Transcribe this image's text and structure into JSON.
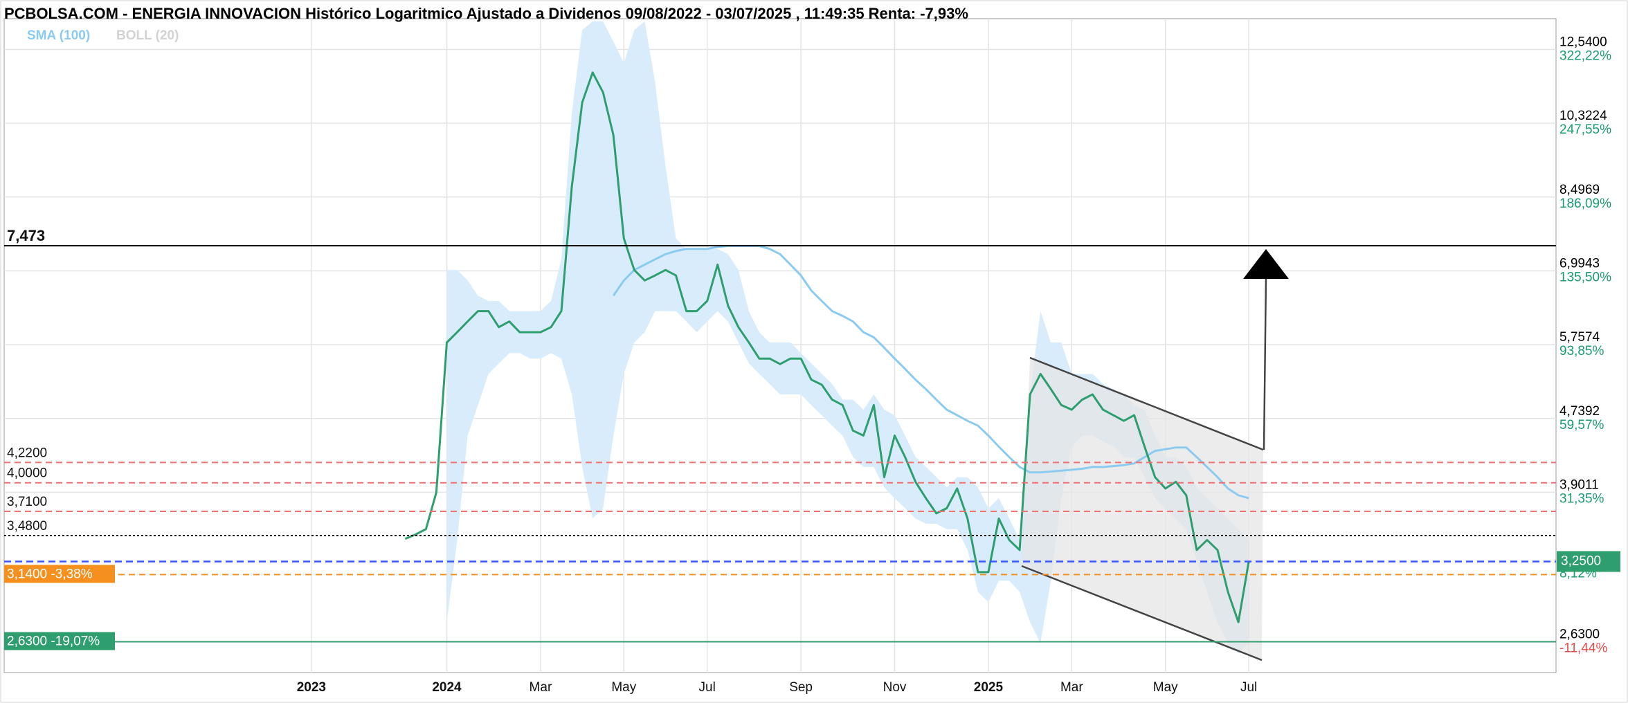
{
  "chart_data": {
    "type": "line",
    "title": "PCBOLSA.COM - ENERGIA INNOVACION Histórico Logaritmico Ajustado a Dividenos 09/08/2022 - 03/07/2025 , 11:49:35 Renta: -7,93%",
    "log_scale": true,
    "grid": true,
    "ylim": [
      2.425,
      13.6
    ],
    "yticks": [
      {
        "value": 12.54,
        "label": "12,5400",
        "sublabel": "322,22%"
      },
      {
        "value": 10.3224,
        "label": "10,3224",
        "sublabel": "247,55%"
      },
      {
        "value": 8.4969,
        "label": "8,4969",
        "sublabel": "186,09%"
      },
      {
        "value": 6.9943,
        "label": "6,9943",
        "sublabel": "135,50%"
      },
      {
        "value": 5.7574,
        "label": "5,7574",
        "sublabel": "93,85%"
      },
      {
        "value": 4.7392,
        "label": "4,7392",
        "sublabel": "59,57%"
      },
      {
        "value": 3.9011,
        "label": "3,9011",
        "sublabel": "31,35%"
      },
      {
        "value": 2.63,
        "label": "2,6300",
        "sublabel": "-11,44%"
      }
    ],
    "categories": [
      null,
      null,
      null,
      null,
      null,
      null,
      null,
      null,
      null,
      null,
      null,
      null,
      null,
      null,
      null,
      null,
      null,
      null,
      null,
      null,
      null,
      null,
      null,
      null,
      null,
      null,
      null,
      null,
      null,
      "2023",
      null,
      null,
      null,
      null,
      null,
      null,
      null,
      null,
      null,
      null,
      null,
      null,
      "2024",
      null,
      null,
      null,
      null,
      null,
      null,
      null,
      null,
      "Mar",
      null,
      null,
      null,
      null,
      null,
      null,
      null,
      "May",
      null,
      null,
      null,
      null,
      null,
      null,
      null,
      "Jul",
      null,
      null,
      null,
      null,
      null,
      null,
      null,
      null,
      "Sep",
      null,
      null,
      null,
      null,
      null,
      null,
      null,
      null,
      "Nov",
      null,
      null,
      null,
      null,
      null,
      null,
      null,
      null,
      "2025",
      null,
      null,
      null,
      null,
      null,
      null,
      null,
      "Mar",
      null,
      null,
      null,
      null,
      null,
      null,
      null,
      null,
      "May",
      null,
      null,
      null,
      null,
      null,
      null,
      null,
      "Jul",
      null,
      null,
      null,
      null,
      null,
      null,
      null,
      null,
      null,
      null,
      null,
      null,
      null,
      null,
      null,
      null,
      null,
      null,
      null,
      null,
      null,
      null,
      null,
      null,
      null,
      null,
      null,
      null,
      null
    ],
    "price": {
      "color": "#2e9e6e",
      "values": [
        null,
        null,
        null,
        null,
        null,
        null,
        null,
        null,
        null,
        null,
        null,
        null,
        null,
        null,
        null,
        null,
        null,
        null,
        null,
        null,
        null,
        null,
        null,
        null,
        null,
        null,
        null,
        null,
        null,
        null,
        null,
        null,
        null,
        null,
        null,
        null,
        null,
        null,
        3.45,
        3.49,
        3.54,
        3.9,
        5.79,
        5.95,
        6.12,
        6.29,
        6.29,
        6.03,
        6.12,
        5.95,
        5.95,
        5.95,
        6.03,
        6.29,
        8.73,
        10.9,
        11.8,
        11.2,
        10.0,
        7.62,
        7.01,
        6.82,
        6.91,
        7.01,
        6.91,
        6.29,
        6.29,
        6.46,
        7.11,
        6.38,
        6.03,
        5.79,
        5.55,
        5.55,
        5.47,
        5.55,
        5.55,
        5.25,
        5.18,
        4.98,
        4.91,
        4.59,
        4.53,
        4.91,
        4.06,
        4.53,
        4.28,
        4.01,
        3.84,
        3.69,
        3.74,
        3.94,
        3.64,
        3.16,
        3.16,
        3.64,
        3.44,
        3.35,
        5.05,
        5.33,
        5.12,
        4.91,
        4.85,
        4.98,
        5.05,
        4.85,
        4.78,
        4.71,
        4.78,
        4.4,
        4.06,
        3.94,
        4.01,
        3.87,
        3.35,
        3.44,
        3.35,
        3.0,
        2.77,
        3.25,
        null,
        null,
        null,
        null,
        null,
        null,
        null,
        null,
        null,
        null,
        null,
        null,
        null,
        null,
        null,
        null,
        null,
        null,
        null,
        null,
        null,
        null,
        null,
        null,
        null,
        null,
        null,
        null,
        null
      ]
    },
    "series": [
      {
        "name": "SMA (100)",
        "color": "#8ccbf0",
        "values": [
          null,
          null,
          null,
          null,
          null,
          null,
          null,
          null,
          null,
          null,
          null,
          null,
          null,
          null,
          null,
          null,
          null,
          null,
          null,
          null,
          null,
          null,
          null,
          null,
          null,
          null,
          null,
          null,
          null,
          null,
          null,
          null,
          null,
          null,
          null,
          null,
          null,
          null,
          null,
          null,
          null,
          null,
          null,
          null,
          null,
          null,
          null,
          null,
          null,
          null,
          null,
          null,
          null,
          null,
          null,
          null,
          null,
          null,
          6.55,
          6.82,
          7.01,
          7.11,
          7.21,
          7.31,
          7.37,
          7.41,
          7.41,
          7.41,
          7.45,
          7.47,
          7.47,
          7.47,
          7.47,
          7.41,
          7.31,
          7.11,
          6.91,
          6.64,
          6.46,
          6.29,
          6.21,
          6.12,
          5.95,
          5.87,
          5.71,
          5.55,
          5.4,
          5.25,
          5.12,
          4.98,
          4.85,
          4.78,
          4.71,
          4.65,
          4.53,
          4.4,
          4.28,
          4.17,
          4.11,
          4.11,
          4.12,
          4.13,
          4.14,
          4.15,
          4.17,
          4.17,
          4.18,
          4.19,
          4.21,
          4.28,
          4.35,
          4.37,
          4.39,
          4.39,
          4.28,
          4.17,
          4.06,
          3.94,
          3.87,
          3.84,
          null,
          null,
          null,
          null,
          null,
          null,
          null,
          null,
          null,
          null,
          null,
          null,
          null,
          null,
          null,
          null,
          null,
          null,
          null,
          null,
          null,
          null,
          null,
          null,
          null,
          null,
          null,
          null,
          null
        ]
      },
      {
        "name": "BOLL (20)",
        "color": "#d2d2d2",
        "band_color": "#d8ecfb",
        "upper": [
          null,
          null,
          null,
          null,
          null,
          null,
          null,
          null,
          null,
          null,
          null,
          null,
          null,
          null,
          null,
          null,
          null,
          null,
          null,
          null,
          null,
          null,
          null,
          null,
          null,
          null,
          null,
          null,
          null,
          null,
          null,
          null,
          null,
          null,
          null,
          null,
          null,
          null,
          null,
          null,
          null,
          null,
          7.01,
          7.01,
          6.82,
          6.55,
          6.46,
          6.46,
          6.29,
          6.29,
          6.29,
          6.29,
          6.46,
          7.21,
          10.6,
          13.2,
          13.5,
          13.5,
          12.8,
          12.1,
          13.2,
          13.5,
          11.5,
          9.22,
          7.62,
          7.41,
          7.41,
          7.41,
          7.41,
          7.31,
          7.01,
          6.29,
          5.95,
          5.79,
          5.79,
          5.79,
          5.63,
          5.48,
          5.33,
          5.19,
          4.98,
          4.98,
          4.85,
          5.05,
          4.85,
          4.78,
          4.53,
          4.28,
          4.17,
          4.06,
          3.95,
          4.06,
          4.06,
          3.95,
          3.74,
          3.84,
          3.64,
          3.44,
          5.05,
          6.29,
          5.79,
          5.79,
          5.33,
          5.33,
          5.33,
          5.19,
          5.12,
          5.05,
          4.91,
          4.85,
          4.53,
          4.28,
          4.28,
          4.17,
          3.95,
          3.84,
          3.74,
          3.64,
          3.54,
          3.44,
          null,
          null,
          null,
          null,
          null,
          null,
          null,
          null,
          null,
          null,
          null,
          null,
          null,
          null,
          null,
          null,
          null,
          null,
          null,
          null,
          null,
          null,
          null,
          null,
          null,
          null,
          null,
          null,
          null
        ],
        "lower": [
          null,
          null,
          null,
          null,
          null,
          null,
          null,
          null,
          null,
          null,
          null,
          null,
          null,
          null,
          null,
          null,
          null,
          null,
          null,
          null,
          null,
          null,
          null,
          null,
          null,
          null,
          null,
          null,
          null,
          null,
          null,
          null,
          null,
          null,
          null,
          null,
          null,
          null,
          null,
          null,
          null,
          null,
          2.77,
          3.44,
          4.53,
          4.91,
          5.33,
          5.48,
          5.63,
          5.63,
          5.55,
          5.55,
          5.63,
          5.55,
          5.05,
          4.17,
          3.64,
          3.74,
          4.53,
          5.33,
          5.79,
          5.95,
          6.29,
          6.29,
          6.29,
          6.12,
          5.95,
          6.12,
          6.29,
          6.12,
          5.79,
          5.48,
          5.33,
          5.19,
          5.05,
          5.05,
          5.05,
          4.91,
          4.78,
          4.65,
          4.53,
          4.28,
          4.17,
          4.17,
          3.95,
          3.84,
          3.74,
          3.64,
          3.59,
          3.59,
          3.54,
          3.54,
          3.35,
          3.0,
          2.92,
          3.09,
          3.09,
          3.0,
          2.77,
          2.62,
          3.09,
          3.84,
          4.4,
          4.53,
          4.53,
          4.46,
          4.4,
          4.28,
          4.28,
          4.06,
          3.84,
          3.74,
          3.64,
          3.54,
          3.26,
          3.0,
          2.77,
          2.62,
          2.55,
          2.62,
          null,
          null,
          null,
          null,
          null,
          null,
          null,
          null,
          null,
          null,
          null,
          null,
          null,
          null,
          null,
          null,
          null,
          null,
          null,
          null,
          null,
          null,
          null,
          null,
          null,
          null,
          null,
          null,
          null
        ]
      }
    ],
    "levels": [
      {
        "value": 7.473,
        "label": "7,473",
        "color": "#000000",
        "style": "solid"
      },
      {
        "value": 4.22,
        "label": "4,2200",
        "color": "#f07070",
        "style": "dashed"
      },
      {
        "value": 4.0,
        "label": "4,0000",
        "color": "#f07070",
        "style": "dashed"
      },
      {
        "value": 3.71,
        "label": "3,7100",
        "color": "#f07070",
        "style": "dashed"
      },
      {
        "value": 3.48,
        "label": "3,4800",
        "color": "#000000",
        "style": "dotted"
      },
      {
        "value": 3.14,
        "label": "3,1400 -3,38%",
        "color": "#f5901e",
        "style": "dashed",
        "badge": true
      },
      {
        "value": 2.63,
        "label": "2,6300 -19,07%",
        "color": "#2e9e6e",
        "style": "solid",
        "badge": true
      }
    ],
    "current": {
      "value": 3.25,
      "label": "3,2500",
      "sublabel": "8,12%",
      "color": "#2e9e6e",
      "line_color": "#3355ff"
    }
  }
}
